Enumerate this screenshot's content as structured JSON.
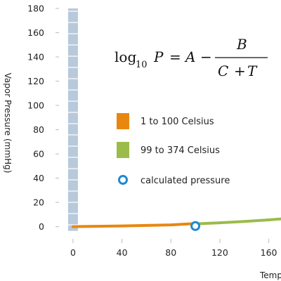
{
  "chart_data": {
    "type": "line",
    "xlabel": "Temperature",
    "ylabel": "Vapor Pressure (mmHg)",
    "xlim": [
      -8,
      170
    ],
    "ylim": [
      -6,
      180
    ],
    "x_ticks": [
      "0",
      "40",
      "80",
      "120",
      "160"
    ],
    "y_ticks": [
      "0",
      "20",
      "40",
      "60",
      "80",
      "100",
      "120",
      "140",
      "160",
      "180"
    ],
    "grid": false,
    "legend_placement": "center",
    "formula": {
      "log": "log",
      "base": "10",
      "lhs_var": "P",
      "equals": "=",
      "A": "A",
      "minus": "−",
      "numerator": "B",
      "den_C": "C",
      "den_plus": "+",
      "den_T": "T"
    },
    "legend": [
      {
        "label": "1 to 100 Celsius",
        "color": "#e8870f",
        "marker": "square"
      },
      {
        "label": "99 to 374 Celsius",
        "color": "#9bbc4a",
        "marker": "square"
      },
      {
        "label": "calculated pressure",
        "color": "#1e88d2",
        "marker": "circle"
      }
    ],
    "series": [
      {
        "color": "#e8870f",
        "points": [
          [
            0,
            0
          ],
          [
            20,
            0.3
          ],
          [
            40,
            0.6
          ],
          [
            60,
            1.0
          ],
          [
            80,
            1.5
          ],
          [
            100,
            2.5
          ]
        ]
      },
      {
        "color": "#9bbc4a",
        "points": [
          [
            99,
            2.3
          ],
          [
            120,
            3.2
          ],
          [
            140,
            4.3
          ],
          [
            160,
            5.6
          ],
          [
            170,
            6.4
          ]
        ]
      }
    ],
    "markers": [
      {
        "label": "calculated pressure",
        "x": 100,
        "y": 0.5,
        "color": "#1e88d2"
      }
    ],
    "bars": [
      {
        "x": 0,
        "y": 180,
        "color": "#b8c9dc"
      }
    ]
  }
}
